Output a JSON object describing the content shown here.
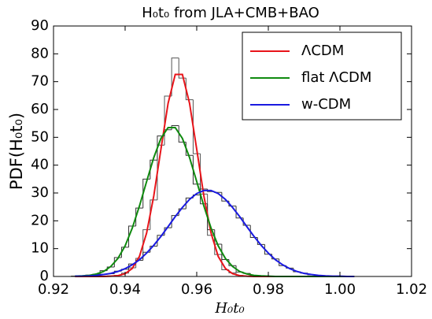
{
  "chart_data": {
    "type": "line",
    "title": "H₀t₀ from JLA+CMB+BAO",
    "xlabel": "H₀t₀",
    "ylabel": "PDF(H₀t₀)",
    "x": [
      0.926,
      0.928,
      0.93,
      0.932,
      0.934,
      0.936,
      0.938,
      0.94,
      0.942,
      0.944,
      0.946,
      0.948,
      0.95,
      0.952,
      0.954,
      0.956,
      0.958,
      0.96,
      0.962,
      0.964,
      0.966,
      0.968,
      0.97,
      0.972,
      0.974,
      0.976,
      0.978,
      0.98,
      0.982,
      0.984,
      0.986,
      0.988,
      0.99,
      0.992,
      0.994,
      0.996,
      0.998,
      1.0,
      1.002,
      1.004
    ],
    "series": [
      {
        "name": "ΛCDM",
        "color": "#e8141a",
        "values": [
          0,
          0,
          0,
          0,
          0,
          0.1,
          0.3,
          1.0,
          2.9,
          7.2,
          15.6,
          28.9,
          45.7,
          62.2,
          72.6,
          72.6,
          62.2,
          45.7,
          28.9,
          15.6,
          7.2,
          2.9,
          1.0,
          0.3,
          0.1,
          0,
          0,
          0,
          0,
          0,
          0,
          0,
          0,
          0,
          0,
          0,
          0,
          0,
          0,
          0
        ]
      },
      {
        "name": "flat ΛCDM",
        "color": "#0f8a0f",
        "values": [
          0.1,
          0.2,
          0.4,
          0.9,
          1.8,
          3.6,
          6.5,
          11.0,
          17.4,
          25.3,
          34.1,
          42.7,
          49.6,
          53.5,
          53.5,
          49.6,
          42.7,
          34.1,
          25.3,
          17.4,
          11.0,
          6.5,
          3.6,
          1.8,
          0.9,
          0.4,
          0.2,
          0.1,
          0,
          0,
          0,
          0,
          0,
          0,
          0,
          0,
          0,
          0,
          0,
          0
        ]
      },
      {
        "name": "w-CDM",
        "color": "#1a1ae0",
        "values": [
          0.1,
          0.1,
          0.2,
          0.4,
          0.7,
          1.1,
          1.8,
          2.8,
          4.2,
          6.0,
          8.4,
          11.2,
          14.4,
          17.9,
          21.5,
          24.8,
          27.7,
          29.8,
          30.9,
          30.9,
          29.8,
          27.7,
          24.8,
          21.5,
          17.9,
          14.4,
          11.2,
          8.4,
          6.0,
          4.2,
          2.8,
          1.8,
          1.1,
          0.7,
          0.4,
          0.2,
          0.1,
          0.1,
          0,
          0
        ]
      }
    ],
    "bins": [
      0.925,
      0.927,
      0.929,
      0.931,
      0.933,
      0.935,
      0.937,
      0.939,
      0.941,
      0.943,
      0.945,
      0.947,
      0.949,
      0.951,
      0.953,
      0.955,
      0.957,
      0.959,
      0.961,
      0.963,
      0.965,
      0.967,
      0.969,
      0.971,
      0.973,
      0.975,
      0.977,
      0.979,
      0.981,
      0.983,
      0.985,
      0.987,
      0.989,
      0.991,
      0.993,
      0.995,
      0.997,
      0.999,
      1.001,
      1.003,
      1.005
    ],
    "histograms": [
      {
        "color": "#555555",
        "counts": [
          0,
          0,
          0,
          0,
          0,
          0.2,
          0.4,
          1.2,
          3.1,
          6.5,
          16.8,
          27.5,
          47.2,
          64.8,
          78.5,
          71.3,
          63.5,
          44.1,
          29.6,
          14.8,
          7.9,
          2.4,
          1.3,
          0.4,
          0.1,
          0,
          0,
          0,
          0,
          0,
          0,
          0,
          0,
          0,
          0,
          0,
          0,
          0,
          0,
          0
        ]
      },
      {
        "color": "#333333",
        "counts": [
          0.1,
          0.3,
          0.5,
          0.8,
          2.1,
          3.4,
          6.8,
          10.5,
          18.1,
          24.6,
          35.0,
          41.8,
          50.5,
          52.7,
          54.2,
          48.3,
          43.5,
          33.2,
          26.1,
          16.8,
          11.6,
          6.1,
          3.9,
          1.6,
          1.1,
          0.3,
          0.2,
          0.1,
          0,
          0,
          0,
          0,
          0,
          0,
          0,
          0,
          0,
          0,
          0,
          0
        ]
      },
      {
        "color": "#333333",
        "counts": [
          0.1,
          0.2,
          0.3,
          0.5,
          0.8,
          1.0,
          1.9,
          2.6,
          4.5,
          5.8,
          8.7,
          10.9,
          14.8,
          17.5,
          21.9,
          24.3,
          28.2,
          29.3,
          31.4,
          30.5,
          30.2,
          27.1,
          25.3,
          21.0,
          18.4,
          14.0,
          11.5,
          8.0,
          6.3,
          3.9,
          3.0,
          1.7,
          1.2,
          0.6,
          0.4,
          0.2,
          0.1,
          0.1,
          0,
          0
        ]
      }
    ],
    "xlim": [
      0.92,
      1.02
    ],
    "xticks": [
      0.92,
      0.94,
      0.96,
      0.98,
      {
        "value": 1,
        "label": "1.00"
      },
      1.02
    ],
    "ylim": [
      0,
      90
    ],
    "yticks": [
      0,
      10,
      20,
      30,
      40,
      50,
      60,
      70,
      80,
      90
    ],
    "legend": "upper right"
  }
}
